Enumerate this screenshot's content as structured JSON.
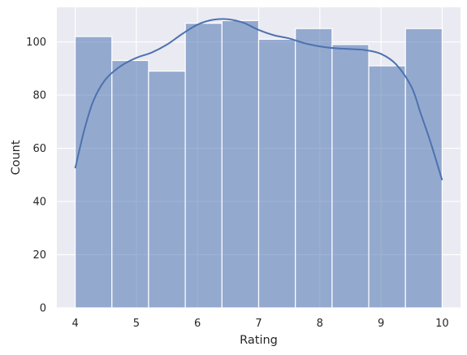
{
  "chart_data": {
    "type": "bar",
    "xlabel": "Rating",
    "ylabel": "Count",
    "xlim": [
      3.7,
      10.3
    ],
    "ylim": [
      0,
      113
    ],
    "x_ticks": [
      4,
      5,
      6,
      7,
      8,
      9,
      10
    ],
    "y_ticks": [
      0,
      20,
      40,
      60,
      80,
      100
    ],
    "bins": [
      {
        "start": 4.0,
        "end": 4.6,
        "count": 102
      },
      {
        "start": 4.6,
        "end": 5.2,
        "count": 93
      },
      {
        "start": 5.2,
        "end": 5.8,
        "count": 89
      },
      {
        "start": 5.8,
        "end": 6.4,
        "count": 107
      },
      {
        "start": 6.4,
        "end": 7.0,
        "count": 108
      },
      {
        "start": 7.0,
        "end": 7.6,
        "count": 101
      },
      {
        "start": 7.6,
        "end": 8.2,
        "count": 105
      },
      {
        "start": 8.2,
        "end": 8.8,
        "count": 99
      },
      {
        "start": 8.8,
        "end": 9.4,
        "count": 91
      },
      {
        "start": 9.4,
        "end": 10.0,
        "count": 105
      }
    ],
    "kde": {
      "x": [
        4.0,
        4.15,
        4.3,
        4.5,
        4.75,
        5.0,
        5.25,
        5.5,
        5.75,
        6.0,
        6.25,
        6.5,
        6.75,
        7.0,
        7.25,
        7.5,
        7.75,
        8.0,
        8.25,
        8.5,
        8.75,
        9.0,
        9.25,
        9.5,
        9.65,
        9.8,
        10.0
      ],
      "y": [
        52.5,
        67,
        78,
        86,
        91,
        94,
        96,
        99,
        103,
        106.5,
        108.3,
        108.5,
        107.2,
        104.5,
        102.5,
        101.3,
        99.5,
        98.3,
        97.6,
        97.3,
        96.9,
        95.5,
        91.5,
        83,
        73,
        63,
        48
      ]
    },
    "grid": true,
    "colors": {
      "background": "#eaeaf2",
      "grid": "#ffffff",
      "bar_fill": "#4c72b0",
      "bar_alpha": 0.55,
      "bar_edge": "#ffffff",
      "kde_line": "#4c72b0"
    }
  }
}
